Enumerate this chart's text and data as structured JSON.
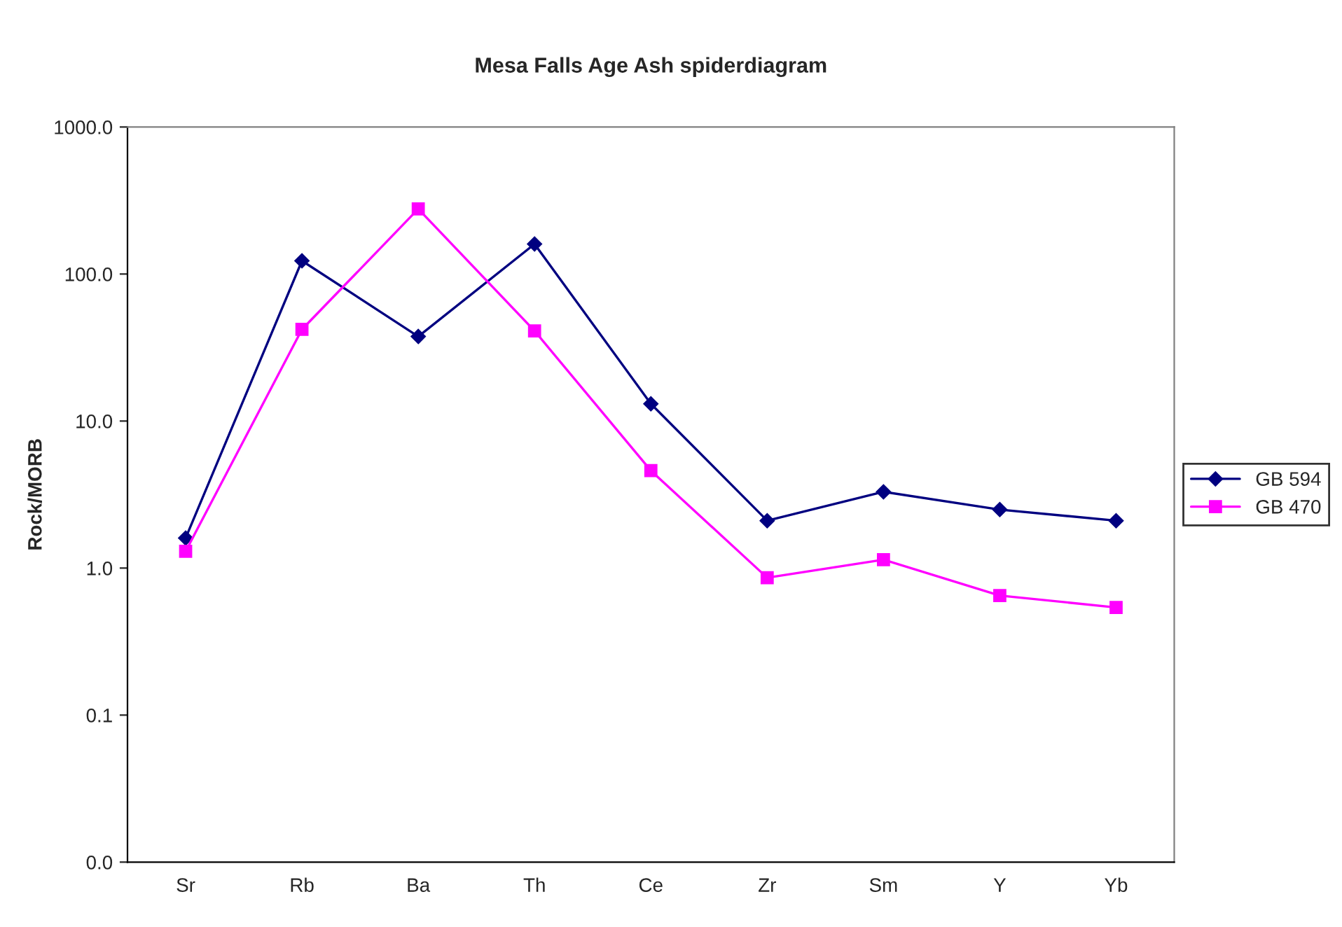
{
  "chart_data": {
    "type": "line",
    "title": "Mesa Falls Age Ash spiderdiagram",
    "ylabel": "Rock/MORB",
    "categories": [
      "Sr",
      "Rb",
      "Ba",
      "Th",
      "Ce",
      "Zr",
      "Sm",
      "Y",
      "Yb"
    ],
    "series": [
      {
        "name": "GB 594",
        "color": "#000080",
        "marker": "diamond",
        "values": [
          1.6,
          123,
          37.6,
          160,
          13.1,
          2.1,
          3.3,
          2.5,
          2.1
        ]
      },
      {
        "name": "GB 470",
        "color": "#ff00ff",
        "marker": "square",
        "values": [
          1.3,
          42,
          277,
          41,
          4.6,
          0.86,
          1.14,
          0.65,
          0.54
        ]
      }
    ],
    "log": "y",
    "ylim": [
      0.01,
      1000
    ],
    "yticks": [
      {
        "value": 0.01,
        "label": "0.0"
      },
      {
        "value": 0.1,
        "label": "0.1"
      },
      {
        "value": 1,
        "label": "1.0"
      },
      {
        "value": 10,
        "label": "10.0"
      },
      {
        "value": 100,
        "label": "100.0"
      },
      {
        "value": 1000,
        "label": "1000.0"
      }
    ],
    "grid": false,
    "legend": "right",
    "line_style": "solid"
  }
}
